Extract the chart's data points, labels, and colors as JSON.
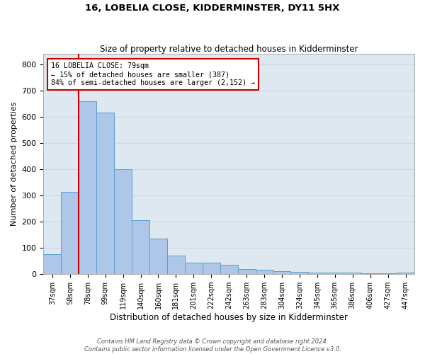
{
  "title": "16, LOBELIA CLOSE, KIDDERMINSTER, DY11 5HX",
  "subtitle": "Size of property relative to detached houses in Kidderminster",
  "xlabel": "Distribution of detached houses by size in Kidderminster",
  "ylabel": "Number of detached properties",
  "categories": [
    "37sqm",
    "58sqm",
    "78sqm",
    "99sqm",
    "119sqm",
    "140sqm",
    "160sqm",
    "181sqm",
    "201sqm",
    "222sqm",
    "242sqm",
    "263sqm",
    "283sqm",
    "304sqm",
    "324sqm",
    "345sqm",
    "365sqm",
    "386sqm",
    "406sqm",
    "427sqm",
    "447sqm"
  ],
  "values": [
    75,
    315,
    660,
    615,
    400,
    205,
    135,
    70,
    45,
    45,
    35,
    20,
    18,
    12,
    8,
    6,
    5,
    5,
    3,
    2,
    5
  ],
  "bar_color": "#aec6e8",
  "bar_edge_color": "#5a9fd4",
  "vline_x_idx": 2,
  "vline_color": "#cc0000",
  "annotation_text": "16 LOBELIA CLOSE: 79sqm\n← 15% of detached houses are smaller (387)\n84% of semi-detached houses are larger (2,152) →",
  "annotation_box_color": "#ffffff",
  "annotation_box_edge": "#cc0000",
  "grid_color": "#c8d8e8",
  "background_color": "#dde8f0",
  "footer_line1": "Contains HM Land Registry data © Crown copyright and database right 2024.",
  "footer_line2": "Contains public sector information licensed under the Open Government Licence v3.0.",
  "ylim": [
    0,
    840
  ],
  "yticks": [
    0,
    100,
    200,
    300,
    400,
    500,
    600,
    700,
    800
  ]
}
